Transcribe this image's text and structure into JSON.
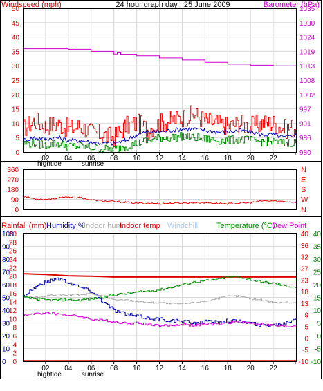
{
  "chart_data": [
    {
      "type": "line",
      "title": "24 hour graph day : 25 June 2009",
      "left_axis_label": "Windspeed (mph)",
      "right_axis_label": "Barometer (hPa)",
      "left_ticks": [
        "0",
        "5",
        "10",
        "15",
        "20",
        "25",
        "30",
        "35",
        "40",
        "45",
        "50"
      ],
      "right_ticks": [
        "980",
        "986",
        "991",
        "997",
        "1002",
        "1008",
        "1013",
        "1019",
        "1024",
        "1030",
        "1035"
      ],
      "x_ticks": [
        "02",
        "04",
        "06",
        "08",
        "10",
        "12",
        "14",
        "16",
        "18",
        "20",
        "22"
      ],
      "x_annotations": [
        {
          "label": "hightide",
          "hour": 1.0
        },
        {
          "label": "sunrise",
          "hour": 4.8
        }
      ],
      "ylim_left": [
        0,
        50
      ],
      "ylim_right": [
        980,
        1035
      ],
      "xlim": [
        0,
        24
      ],
      "colors": {
        "left_axis": "#dd0000",
        "right_axis": "#cc00cc",
        "gust": "#ee0000",
        "average": "#0000bb",
        "direction_avg": "#008800",
        "barometer": "#cc00cc"
      },
      "series": [
        {
          "key": "gust",
          "x": [
            0,
            1,
            2,
            3,
            4,
            5,
            6,
            7,
            8,
            9,
            10,
            11,
            12,
            13,
            14,
            15,
            16,
            17,
            18,
            19,
            20,
            21,
            22,
            23,
            24
          ],
          "values": [
            8,
            11,
            9,
            10,
            8,
            9,
            7,
            6,
            5,
            9,
            10,
            8,
            10,
            11,
            12,
            13,
            11,
            10,
            9,
            10,
            9,
            10,
            10,
            8,
            9
          ]
        },
        {
          "key": "average",
          "x": [
            0,
            1,
            2,
            3,
            4,
            5,
            6,
            7,
            8,
            9,
            10,
            11,
            12,
            13,
            14,
            15,
            16,
            17,
            18,
            19,
            20,
            21,
            22,
            23,
            24
          ],
          "values": [
            4,
            5,
            4.5,
            5,
            4,
            4,
            3.5,
            3,
            3,
            4,
            6,
            7,
            7,
            7.5,
            8,
            8,
            7.5,
            7,
            7,
            7.5,
            7,
            6,
            6,
            5,
            6
          ]
        },
        {
          "key": "direction_avg",
          "x": [
            0,
            1,
            2,
            3,
            4,
            5,
            6,
            7,
            8,
            9,
            10,
            11,
            12,
            13,
            14,
            15,
            16,
            17,
            18,
            19,
            20,
            21,
            22,
            23,
            24
          ],
          "values": [
            3,
            3,
            2.5,
            3,
            2,
            2,
            1.5,
            1,
            1,
            2,
            3,
            4,
            5,
            5,
            5.5,
            5,
            4.5,
            4,
            4,
            4.5,
            4,
            3.5,
            3.5,
            3,
            3.5
          ]
        },
        {
          "key": "barometer",
          "axis": "right",
          "x": [
            0,
            2,
            4,
            6,
            8,
            8.3,
            8.6,
            10,
            12,
            14,
            16,
            18,
            20,
            22,
            24
          ],
          "values": [
            1019.5,
            1019.5,
            1019.3,
            1018.5,
            1017.5,
            1018.2,
            1017.4,
            1016.8,
            1016,
            1015.2,
            1014.3,
            1013.6,
            1013.2,
            1013,
            1013
          ]
        }
      ]
    },
    {
      "type": "line",
      "title": "",
      "left_ticks": [
        "0",
        "90",
        "180",
        "270",
        "360"
      ],
      "right_ticks": [
        "N",
        "W",
        "S",
        "E",
        "N"
      ],
      "ylim": [
        0,
        360
      ],
      "xlim": [
        0,
        24
      ],
      "colors": {
        "direction": "#dd0000"
      },
      "series": [
        {
          "key": "wind_direction",
          "x": [
            0,
            1,
            2,
            3,
            4,
            5,
            6,
            7,
            8,
            9,
            10,
            11,
            12,
            13,
            14,
            15,
            16,
            17,
            18,
            19,
            20,
            21,
            22,
            23,
            24
          ],
          "values": [
            120,
            95,
            90,
            100,
            110,
            105,
            85,
            75,
            70,
            65,
            55,
            55,
            50,
            55,
            55,
            60,
            60,
            55,
            50,
            55,
            60,
            75,
            75,
            70,
            65
          ]
        }
      ]
    },
    {
      "type": "line",
      "title": "",
      "labels": {
        "rainfall": "Rainfall (mm)",
        "humidity": "Humidity %",
        "indoor_hum": "Indoor hum",
        "indoor_temp": "Indoor temp",
        "windchill": "Windchill",
        "temperature": "Temperature (°C)",
        "dew_point": "Dew Point"
      },
      "colors": {
        "rainfall": "#dd0000",
        "humidity": "#0000aa",
        "indoor_hum": "#aaaaaa",
        "indoor_temp": "#dd0000",
        "windchill": "#aaccee",
        "temperature": "#008800",
        "dew_point": "#cc00cc"
      },
      "rain_ticks": [
        "0",
        "2",
        "4",
        "6",
        "8",
        "10",
        "12",
        "14",
        "16",
        "18",
        "20",
        "22",
        "24",
        "26",
        "28",
        "30"
      ],
      "humidity_ticks": [
        "0",
        "10",
        "20",
        "30",
        "40",
        "50",
        "60",
        "70",
        "80",
        "90",
        "100"
      ],
      "temp_ticks_a": [
        "-10",
        "-5",
        "0",
        "5",
        "9",
        "13",
        "18",
        "23",
        "27",
        "32",
        "36",
        "40"
      ],
      "temp_ticks_b": [
        "-10",
        "-5",
        "0",
        "5",
        "10",
        "15",
        "20",
        "25",
        "30",
        "35",
        "40"
      ],
      "x_ticks": [
        "02",
        "04",
        "06",
        "08",
        "10",
        "12",
        "14",
        "16",
        "18",
        "20",
        "22"
      ],
      "x_annotations": [
        {
          "label": "hightide",
          "hour": 1.0
        },
        {
          "label": "sunrise",
          "hour": 4.8
        }
      ],
      "ylim_humidity": [
        0,
        100
      ],
      "ylim_temp": [
        -10,
        40
      ],
      "xlim": [
        0,
        24
      ],
      "series": [
        {
          "key": "indoor_temp",
          "axis": "temp",
          "x": [
            0,
            2,
            4,
            6,
            8,
            10,
            12,
            14,
            16,
            18,
            20,
            22,
            24
          ],
          "values": [
            24.3,
            24,
            23.5,
            23.3,
            23,
            23,
            23,
            23,
            23,
            23,
            23,
            23,
            23
          ]
        },
        {
          "key": "humidity",
          "axis": "humidity",
          "x": [
            0,
            1,
            2,
            3,
            4,
            5,
            6,
            7,
            8,
            9,
            10,
            11,
            12,
            13,
            14,
            15,
            16,
            17,
            18,
            19,
            20,
            21,
            22,
            23,
            24
          ],
          "values": [
            51,
            58,
            62,
            65,
            62,
            58,
            55,
            47,
            40,
            37,
            35,
            34,
            33,
            32,
            31,
            30,
            31,
            31,
            32,
            31,
            30,
            28,
            29,
            30,
            34
          ]
        },
        {
          "key": "indoor_hum",
          "axis": "humidity",
          "x": [
            0,
            1,
            2,
            3,
            4,
            5,
            6,
            7,
            8,
            9,
            10,
            11,
            12,
            13,
            14,
            15,
            16,
            17,
            18,
            19,
            20,
            21,
            22,
            23,
            24
          ],
          "values": [
            50,
            50,
            51,
            52,
            52,
            52,
            53,
            51,
            48,
            48,
            47,
            46,
            46,
            45,
            45,
            46,
            47,
            49,
            51,
            51,
            49,
            48,
            46,
            46,
            46
          ]
        },
        {
          "key": "temperature",
          "axis": "temp",
          "x": [
            0,
            1,
            2,
            3,
            4,
            5,
            6,
            7,
            8,
            9,
            10,
            11,
            12,
            13,
            14,
            15,
            16,
            17,
            18,
            19,
            20,
            21,
            22,
            23,
            24
          ],
          "values": [
            15,
            14.5,
            14,
            14,
            14,
            14,
            14.5,
            15,
            16,
            16.5,
            17,
            17.5,
            18,
            19,
            20,
            21,
            21.5,
            22,
            23,
            23,
            22,
            21,
            20.5,
            19.5,
            19
          ]
        },
        {
          "key": "dew_point",
          "axis": "temp",
          "x": [
            0,
            1,
            2,
            3,
            4,
            5,
            6,
            7,
            8,
            9,
            10,
            11,
            12,
            13,
            14,
            15,
            16,
            17,
            18,
            19,
            20,
            21,
            22,
            23,
            24
          ],
          "values": [
            8,
            8.5,
            9,
            8.5,
            8,
            7.5,
            6.5,
            6,
            5.5,
            5,
            5,
            4.5,
            4,
            4,
            4.5,
            4,
            4.5,
            4.5,
            5,
            5.5,
            5,
            4.5,
            4,
            3.5,
            4
          ]
        },
        {
          "key": "rainfall",
          "axis": "rain",
          "x": [
            0,
            24
          ],
          "values": [
            0,
            0
          ]
        }
      ]
    }
  ]
}
